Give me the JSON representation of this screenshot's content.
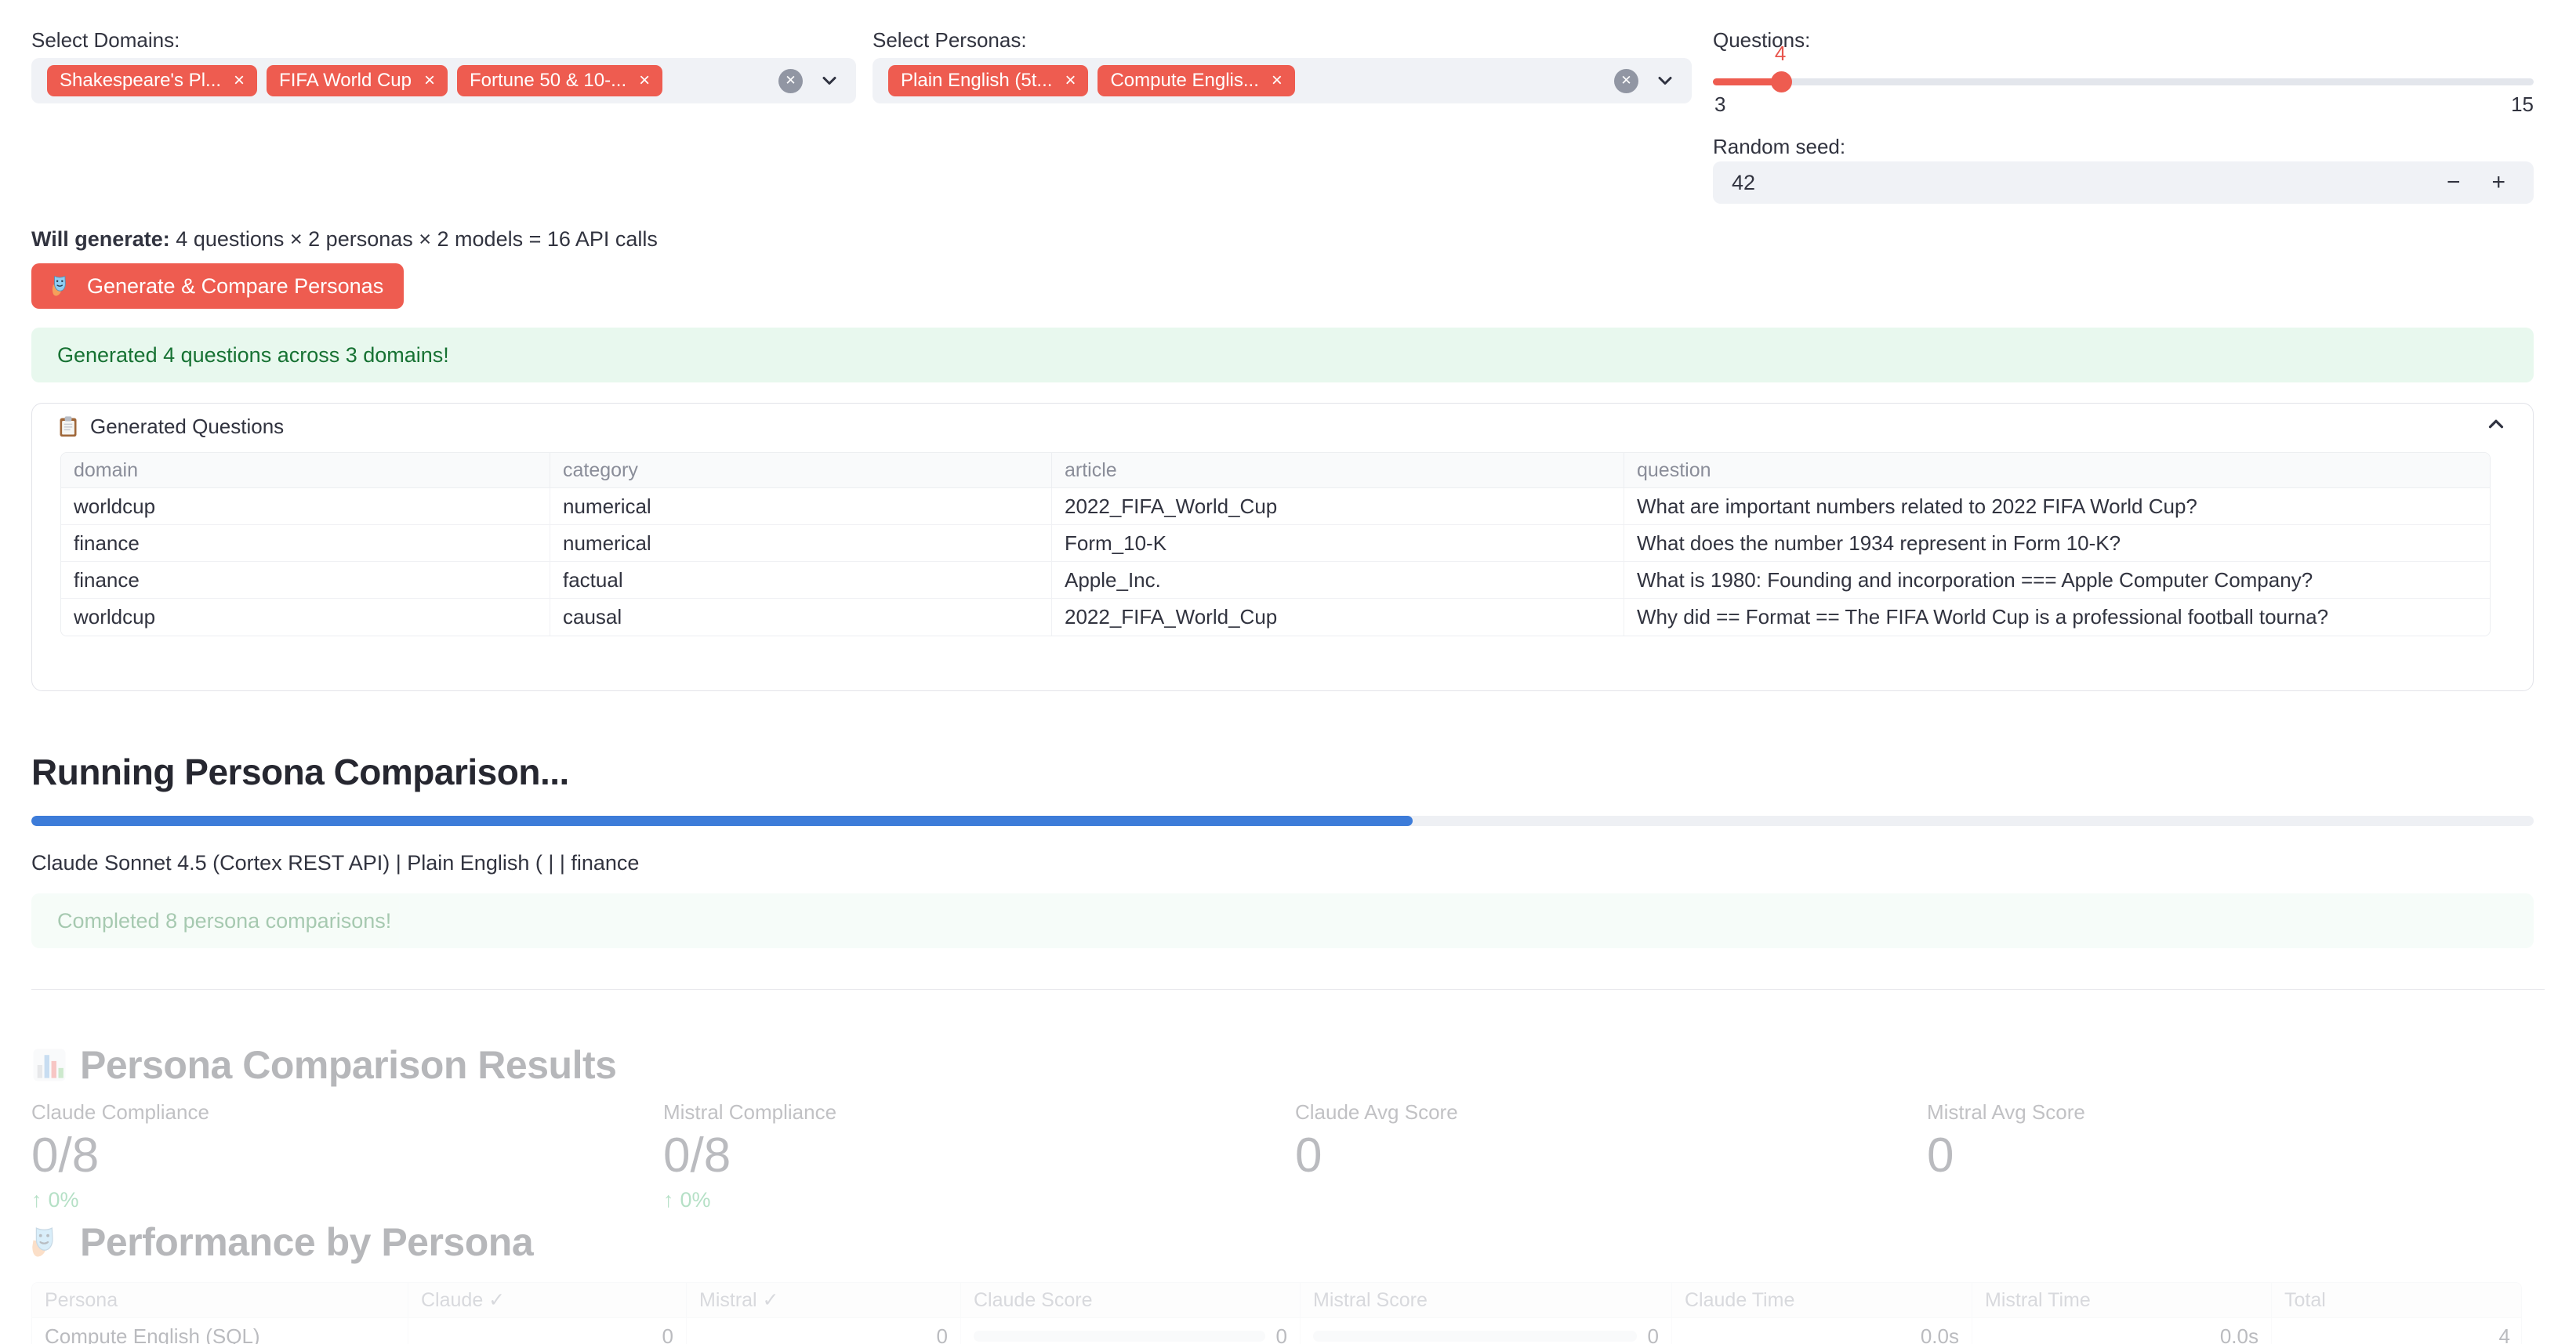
{
  "icons": {
    "tag_remove": "×",
    "clear_x": "✕",
    "up_arrow": "↑"
  },
  "colors": {
    "accent": "#ee5c50",
    "progress_blue": "#3d7cd9",
    "success_bg": "#e8f8ee",
    "success_text": "#177233",
    "delta_green": "#23a455"
  },
  "filters": {
    "domains": {
      "label": "Select Domains:",
      "tags": [
        "Shakespeare's Pl...",
        "FIFA World Cup",
        "Fortune 50 & 10-..."
      ]
    },
    "personas": {
      "label": "Select Personas:",
      "tags": [
        "Plain English (5t...",
        "Compute Englis..."
      ]
    },
    "questions": {
      "label": "Questions:",
      "value": "4",
      "min": "3",
      "max": "15",
      "percent": 8.3
    },
    "seed": {
      "label": "Random seed:",
      "value": "42",
      "decrement": "−",
      "increment": "+"
    }
  },
  "summary": {
    "prefix": "Will generate:",
    "rest": " 4 questions × 2 personas × 2 models = 16 API calls"
  },
  "generate_button": {
    "label": "Generate & Compare Personas"
  },
  "success_banner": {
    "text": "Generated 4 questions across 3 domains!"
  },
  "questions_expander": {
    "title": "Generated Questions",
    "table": {
      "columns": [
        "domain",
        "category",
        "article",
        "question"
      ],
      "rows": [
        {
          "domain": "worldcup",
          "category": "numerical",
          "article": "2022_FIFA_World_Cup",
          "question": "What are important numbers related to 2022 FIFA World Cup?"
        },
        {
          "domain": "finance",
          "category": "numerical",
          "article": "Form_10-K",
          "question": "What does the number 1934 represent in Form 10-K?"
        },
        {
          "domain": "finance",
          "category": "factual",
          "article": "Apple_Inc.",
          "question": "What is 1980: Founding and incorporation ===  Apple Computer Company?"
        },
        {
          "domain": "worldcup",
          "category": "causal",
          "article": "2022_FIFA_World_Cup",
          "question": "Why did == Format == The FIFA World Cup is a professional football tourna?"
        }
      ]
    }
  },
  "run_section": {
    "heading": "Running Persona Comparison...",
    "progress_percent": 55.2,
    "status_text": "Claude Sonnet 4.5 (Cortex REST API) | Plain English ( | | finance",
    "completed_banner": "Completed 8 persona comparisons!"
  },
  "results_section": {
    "heading": "Persona Comparison Results",
    "metrics": [
      {
        "label": "Claude Compliance",
        "value": "0/8",
        "delta": "0%"
      },
      {
        "label": "Mistral Compliance",
        "value": "0/8",
        "delta": "0%"
      },
      {
        "label": "Claude Avg Score",
        "value": "0",
        "delta": ""
      },
      {
        "label": "Mistral Avg Score",
        "value": "0",
        "delta": ""
      }
    ]
  },
  "performance_section": {
    "heading": "Performance by Persona",
    "table": {
      "columns": [
        "Persona",
        "Claude ✓",
        "Mistral ✓",
        "Claude Score",
        "Mistral Score",
        "Claude Time",
        "Mistral Time",
        "Total"
      ],
      "rows": [
        {
          "persona": "Compute English (SQL)",
          "claude_check": "0",
          "mistral_check": "0",
          "claude_score": "0",
          "mistral_score": "0",
          "claude_time": "0.0s",
          "mistral_time": "0.0s",
          "total": "4"
        }
      ]
    }
  }
}
